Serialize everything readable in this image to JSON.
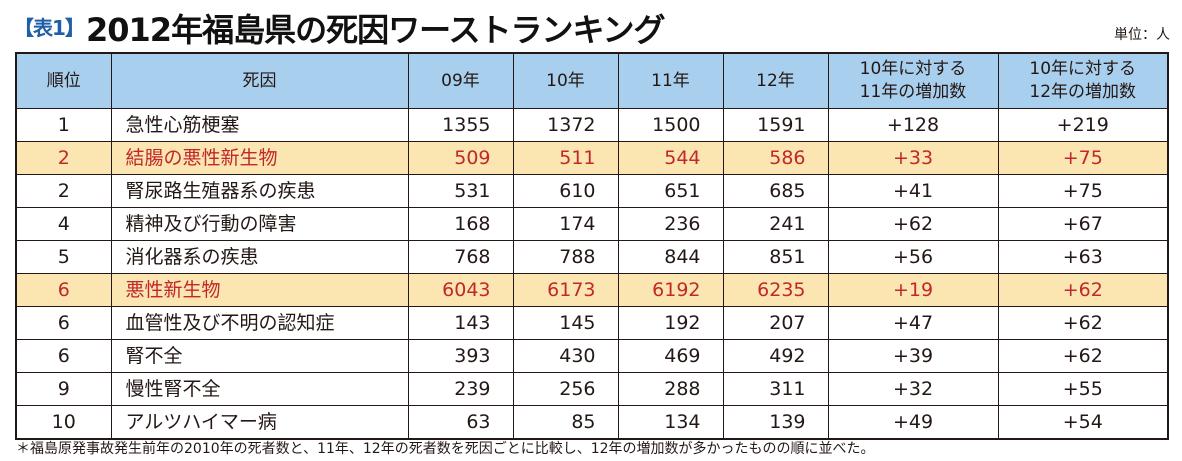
{
  "header": {
    "tag": "【表1】",
    "title": "2012年福島県の死因ワーストランキング",
    "unit": "単位：人"
  },
  "table": {
    "columns": [
      "順位",
      "死因",
      "09年",
      "10年",
      "11年",
      "12年",
      "10年に対する\n11年の増加数",
      "10年に対する\n12年の増加数"
    ],
    "rows": [
      {
        "rank": "1",
        "cause": "急性心筋梗塞",
        "y09": "1355",
        "y10": "1372",
        "y11": "1500",
        "y12": "1591",
        "d11": "+128",
        "d12": "+219",
        "highlight": false
      },
      {
        "rank": "2",
        "cause": "結腸の悪性新生物",
        "y09": "509",
        "y10": "511",
        "y11": "544",
        "y12": "586",
        "d11": "+33",
        "d12": "+75",
        "highlight": true
      },
      {
        "rank": "2",
        "cause": "腎尿路生殖器系の疾患",
        "y09": "531",
        "y10": "610",
        "y11": "651",
        "y12": "685",
        "d11": "+41",
        "d12": "+75",
        "highlight": false
      },
      {
        "rank": "4",
        "cause": "精神及び行動の障害",
        "y09": "168",
        "y10": "174",
        "y11": "236",
        "y12": "241",
        "d11": "+62",
        "d12": "+67",
        "highlight": false
      },
      {
        "rank": "5",
        "cause": "消化器系の疾患",
        "y09": "768",
        "y10": "788",
        "y11": "844",
        "y12": "851",
        "d11": "+56",
        "d12": "+63",
        "highlight": false
      },
      {
        "rank": "6",
        "cause": "悪性新生物",
        "y09": "6043",
        "y10": "6173",
        "y11": "6192",
        "y12": "6235",
        "d11": "+19",
        "d12": "+62",
        "highlight": true
      },
      {
        "rank": "6",
        "cause": "血管性及び不明の認知症",
        "y09": "143",
        "y10": "145",
        "y11": "192",
        "y12": "207",
        "d11": "+47",
        "d12": "+62",
        "highlight": false
      },
      {
        "rank": "6",
        "cause": "腎不全",
        "y09": "393",
        "y10": "430",
        "y11": "469",
        "y12": "492",
        "d11": "+39",
        "d12": "+62",
        "highlight": false
      },
      {
        "rank": "9",
        "cause": "慢性腎不全",
        "y09": "239",
        "y10": "256",
        "y11": "288",
        "y12": "311",
        "d11": "+32",
        "d12": "+55",
        "highlight": false
      },
      {
        "rank": "10",
        "cause": "アルツハイマー病",
        "y09": "63",
        "y10": "85",
        "y11": "134",
        "y12": "139",
        "d11": "+49",
        "d12": "+54",
        "highlight": false
      }
    ]
  },
  "footnote": "＊福島原発事故発生前年の2010年の死者数と、11年、12年の死者数を死因ごとに比較し、12年の増加数が多かったものの順に並べた。",
  "colors": {
    "header_bg": "#a9cfee",
    "highlight_bg": "#fbe5b0",
    "highlight_text": "#c1272d",
    "tag_blue": "#1f5fa8"
  }
}
